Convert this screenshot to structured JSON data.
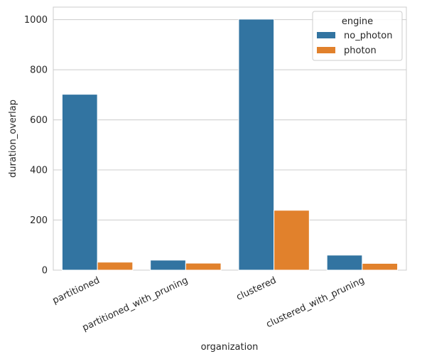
{
  "chart_data": {
    "type": "bar",
    "xlabel": "organization",
    "ylabel": "duration_overlap",
    "ylim": [
      0,
      1050
    ],
    "yticks": [
      0,
      200,
      400,
      600,
      800,
      1000
    ],
    "grid": true,
    "categories": [
      "partitioned",
      "partitioned_with_pruning",
      "clustered",
      "clustered_with_pruning"
    ],
    "legend": {
      "title": "engine",
      "placement": "top-right"
    },
    "series": [
      {
        "name": "no_photon",
        "color": "#3274a1",
        "values": [
          702,
          40,
          1002,
          60
        ]
      },
      {
        "name": "photon",
        "color": "#e1812c",
        "values": [
          32,
          28,
          239,
          27
        ]
      }
    ]
  }
}
